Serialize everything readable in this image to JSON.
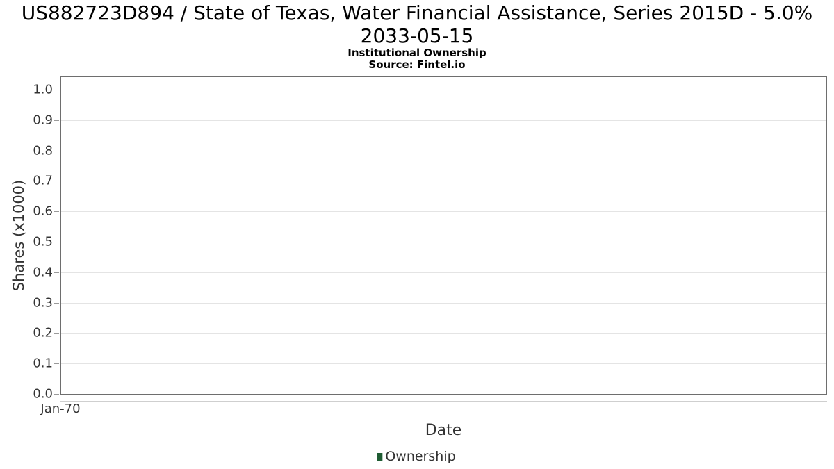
{
  "chart_data": {
    "type": "line",
    "title": "US882723D894 / State of Texas, Water Financial Assistance, Series 2015D - 5.0% 2033-05-15",
    "title_lines": [
      "US882723D894 / State of Texas, Water Financial Assistance, Series 2015D - 5.0%",
      "2033-05-15"
    ],
    "subtitle": "Institutional Ownership",
    "source": "Source: Fintel.io",
    "xlabel": "Date",
    "ylabel": "Shares (x1000)",
    "x_tick_labels": [
      "Jan-70"
    ],
    "y_ticks": [
      0.0,
      0.1,
      0.2,
      0.3,
      0.4,
      0.5,
      0.6,
      0.7,
      0.8,
      0.9,
      1.0
    ],
    "ylim": [
      0.0,
      1.05
    ],
    "grid": "horizontal",
    "legend_position": "bottom-center",
    "series": [
      {
        "name": "Ownership",
        "color": "#1f5c33",
        "x": [],
        "values": []
      }
    ]
  },
  "colors": {
    "plot_border": "#6e6e6e",
    "gridline": "#e4e4e4",
    "tick": "#9a9a9a",
    "x_axis_line": "#cfcfcf",
    "title_text": "#000000",
    "axis_text": "#333333",
    "series_green": "#1f5c33"
  }
}
